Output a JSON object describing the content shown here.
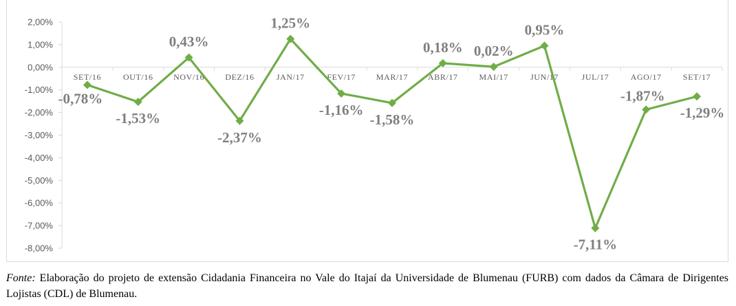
{
  "chart_data": {
    "type": "line",
    "title": "",
    "xlabel": "",
    "ylabel": "",
    "categories": [
      "SET/16",
      "OUT/16",
      "NOV/16",
      "DEZ/16",
      "JAN/17",
      "FEV/17",
      "MAR/17",
      "ABR/17",
      "MAI/17",
      "JUN/17",
      "JUL/17",
      "AGO/17",
      "SET/17"
    ],
    "series": [
      {
        "values": [
          -0.78,
          -1.53,
          0.43,
          -2.37,
          1.25,
          -1.16,
          -1.58,
          0.18,
          0.02,
          0.95,
          -7.11,
          -1.87,
          -1.29
        ],
        "labels": [
          "-0,78%",
          "-1,53%",
          "0,43%",
          "-2,37%",
          "1,25%",
          "-1,16%",
          "-1,58%",
          "0,18%",
          "0,02%",
          "0,95%",
          "-7,11%",
          "-1,87%",
          "-1,29%"
        ],
        "color": "#70ad47"
      }
    ],
    "ylim": [
      -8,
      2
    ],
    "yticks": [
      "2,00%",
      "1,00%",
      "0,00%",
      "-1,00%",
      "-2,00%",
      "-3,00%",
      "-4,00%",
      "-5,00%",
      "-6,00%",
      "-7,00%",
      "-8,00%"
    ],
    "grid": false,
    "legend": "none",
    "axis_color": "#d9d9d9",
    "label_color": "#7f7f7f"
  },
  "caption": {
    "source_label": "Fonte:",
    "text": " Elaboração do projeto de extensão Cidadania Financeira no Vale do Itajaí da Universidade de Blumenau (FURB) com dados da Câmara de Dirigentes Lojistas (CDL) de Blumenau."
  }
}
